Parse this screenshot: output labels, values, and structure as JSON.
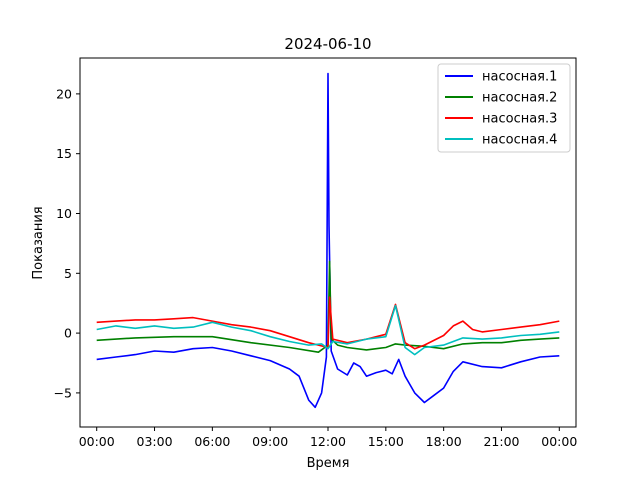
{
  "chart_data": {
    "type": "line",
    "title": "2024-06-10",
    "xlabel": "Время",
    "ylabel": "Показания",
    "xlim": [
      "-00:52",
      "24:52"
    ],
    "ylim": [
      -7.85,
      23.0
    ],
    "x_ticks": [
      "00:00",
      "03:00",
      "06:00",
      "09:00",
      "12:00",
      "15:00",
      "18:00",
      "21:00",
      "00:00"
    ],
    "y_ticks": [
      -5,
      0,
      5,
      10,
      15,
      20
    ],
    "grid": false,
    "legend": "top-right",
    "series": [
      {
        "name": "насосная.1",
        "color": "#0000ff",
        "points": [
          [
            "00:00",
            -2.2
          ],
          [
            "01:00",
            -2.0
          ],
          [
            "02:00",
            -1.8
          ],
          [
            "03:00",
            -1.5
          ],
          [
            "04:00",
            -1.6
          ],
          [
            "05:00",
            -1.3
          ],
          [
            "06:00",
            -1.2
          ],
          [
            "07:00",
            -1.5
          ],
          [
            "08:00",
            -1.9
          ],
          [
            "09:00",
            -2.3
          ],
          [
            "10:00",
            -3.0
          ],
          [
            "10:30",
            -3.6
          ],
          [
            "11:00",
            -5.6
          ],
          [
            "11:20",
            -6.2
          ],
          [
            "11:40",
            -5.0
          ],
          [
            "11:55",
            -2.0
          ],
          [
            "12:00",
            21.7
          ],
          [
            "12:03",
            9.0
          ],
          [
            "12:10",
            -1.5
          ],
          [
            "12:30",
            -3.0
          ],
          [
            "13:00",
            -3.5
          ],
          [
            "13:20",
            -2.5
          ],
          [
            "13:40",
            -2.8
          ],
          [
            "14:00",
            -3.6
          ],
          [
            "14:30",
            -3.3
          ],
          [
            "15:00",
            -3.1
          ],
          [
            "15:20",
            -3.4
          ],
          [
            "15:40",
            -2.2
          ],
          [
            "16:00",
            -3.6
          ],
          [
            "16:30",
            -5.0
          ],
          [
            "17:00",
            -5.8
          ],
          [
            "17:30",
            -5.2
          ],
          [
            "18:00",
            -4.6
          ],
          [
            "18:30",
            -3.2
          ],
          [
            "19:00",
            -2.4
          ],
          [
            "20:00",
            -2.8
          ],
          [
            "21:00",
            -2.9
          ],
          [
            "22:00",
            -2.4
          ],
          [
            "23:00",
            -2.0
          ],
          [
            "24:00",
            -1.9
          ]
        ]
      },
      {
        "name": "насосная.2",
        "color": "#008000",
        "points": [
          [
            "00:00",
            -0.6
          ],
          [
            "02:00",
            -0.4
          ],
          [
            "04:00",
            -0.3
          ],
          [
            "06:00",
            -0.3
          ],
          [
            "08:00",
            -0.8
          ],
          [
            "10:00",
            -1.2
          ],
          [
            "11:30",
            -1.6
          ],
          [
            "12:00",
            -1.0
          ],
          [
            "12:05",
            6.0
          ],
          [
            "12:10",
            -0.5
          ],
          [
            "12:30",
            -1.0
          ],
          [
            "13:00",
            -1.2
          ],
          [
            "14:00",
            -1.4
          ],
          [
            "15:00",
            -1.2
          ],
          [
            "15:30",
            -0.9
          ],
          [
            "16:00",
            -1.0
          ],
          [
            "17:00",
            -1.1
          ],
          [
            "18:00",
            -1.3
          ],
          [
            "19:00",
            -0.9
          ],
          [
            "20:00",
            -0.8
          ],
          [
            "21:00",
            -0.8
          ],
          [
            "22:00",
            -0.6
          ],
          [
            "23:00",
            -0.5
          ],
          [
            "24:00",
            -0.4
          ]
        ]
      },
      {
        "name": "насосная.3",
        "color": "#ff0000",
        "points": [
          [
            "00:00",
            0.9
          ],
          [
            "01:00",
            1.0
          ],
          [
            "02:00",
            1.1
          ],
          [
            "03:00",
            1.1
          ],
          [
            "04:00",
            1.2
          ],
          [
            "05:00",
            1.3
          ],
          [
            "06:00",
            1.0
          ],
          [
            "07:00",
            0.7
          ],
          [
            "08:00",
            0.5
          ],
          [
            "09:00",
            0.2
          ],
          [
            "10:00",
            -0.3
          ],
          [
            "11:00",
            -0.8
          ],
          [
            "12:00",
            -1.2
          ],
          [
            "12:05",
            3.0
          ],
          [
            "12:15",
            -0.5
          ],
          [
            "13:00",
            -0.8
          ],
          [
            "14:00",
            -0.5
          ],
          [
            "15:00",
            -0.1
          ],
          [
            "15:30",
            2.4
          ],
          [
            "16:00",
            -0.8
          ],
          [
            "16:30",
            -1.3
          ],
          [
            "17:00",
            -1.0
          ],
          [
            "18:00",
            -0.2
          ],
          [
            "18:30",
            0.6
          ],
          [
            "19:00",
            1.0
          ],
          [
            "19:30",
            0.3
          ],
          [
            "20:00",
            0.1
          ],
          [
            "21:00",
            0.3
          ],
          [
            "22:00",
            0.5
          ],
          [
            "23:00",
            0.7
          ],
          [
            "24:00",
            1.0
          ]
        ]
      },
      {
        "name": "насосная.4",
        "color": "#00bfbf",
        "points": [
          [
            "00:00",
            0.3
          ],
          [
            "01:00",
            0.6
          ],
          [
            "02:00",
            0.4
          ],
          [
            "03:00",
            0.6
          ],
          [
            "04:00",
            0.4
          ],
          [
            "05:00",
            0.5
          ],
          [
            "06:00",
            0.9
          ],
          [
            "07:00",
            0.5
          ],
          [
            "08:00",
            0.2
          ],
          [
            "09:00",
            -0.3
          ],
          [
            "10:00",
            -0.7
          ],
          [
            "11:00",
            -1.0
          ],
          [
            "11:40",
            -0.9
          ],
          [
            "12:00",
            -1.3
          ],
          [
            "12:15",
            -0.7
          ],
          [
            "13:00",
            -0.9
          ],
          [
            "14:00",
            -0.5
          ],
          [
            "15:00",
            -0.3
          ],
          [
            "15:30",
            2.3
          ],
          [
            "16:00",
            -1.2
          ],
          [
            "16:30",
            -1.8
          ],
          [
            "17:00",
            -1.2
          ],
          [
            "18:00",
            -1.0
          ],
          [
            "19:00",
            -0.4
          ],
          [
            "20:00",
            -0.5
          ],
          [
            "21:00",
            -0.4
          ],
          [
            "22:00",
            -0.2
          ],
          [
            "23:00",
            -0.1
          ],
          [
            "24:00",
            0.1
          ]
        ]
      }
    ]
  }
}
